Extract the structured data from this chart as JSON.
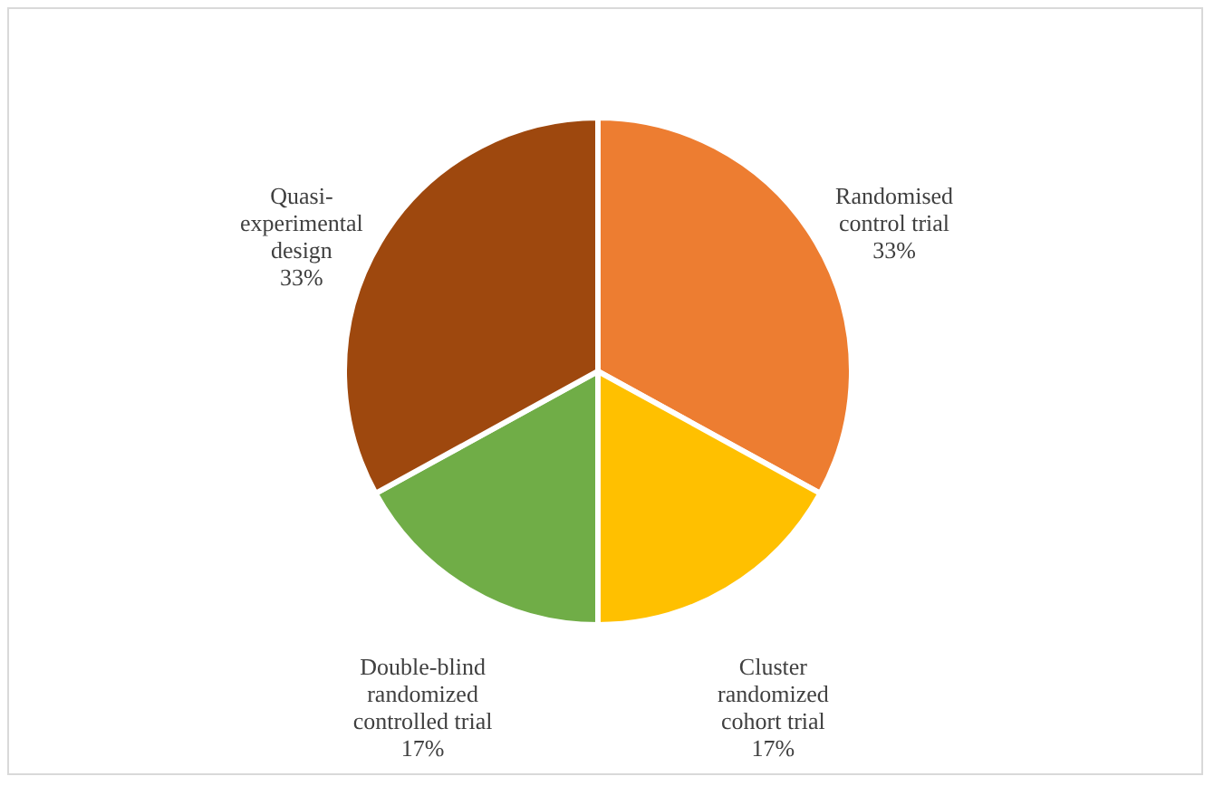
{
  "chart_data": {
    "type": "pie",
    "categories": [
      "Randomised control trial",
      "Cluster randomized cohort trial",
      "Double-blind randomized controlled trial",
      "Quasi-experimental design"
    ],
    "values": [
      33,
      17,
      17,
      33
    ],
    "value_labels": [
      "33%",
      "17%",
      "17%",
      "33%"
    ],
    "colors": [
      "#ed7d31",
      "#ffc000",
      "#70ad47",
      "#9e480e"
    ],
    "legend": false
  }
}
